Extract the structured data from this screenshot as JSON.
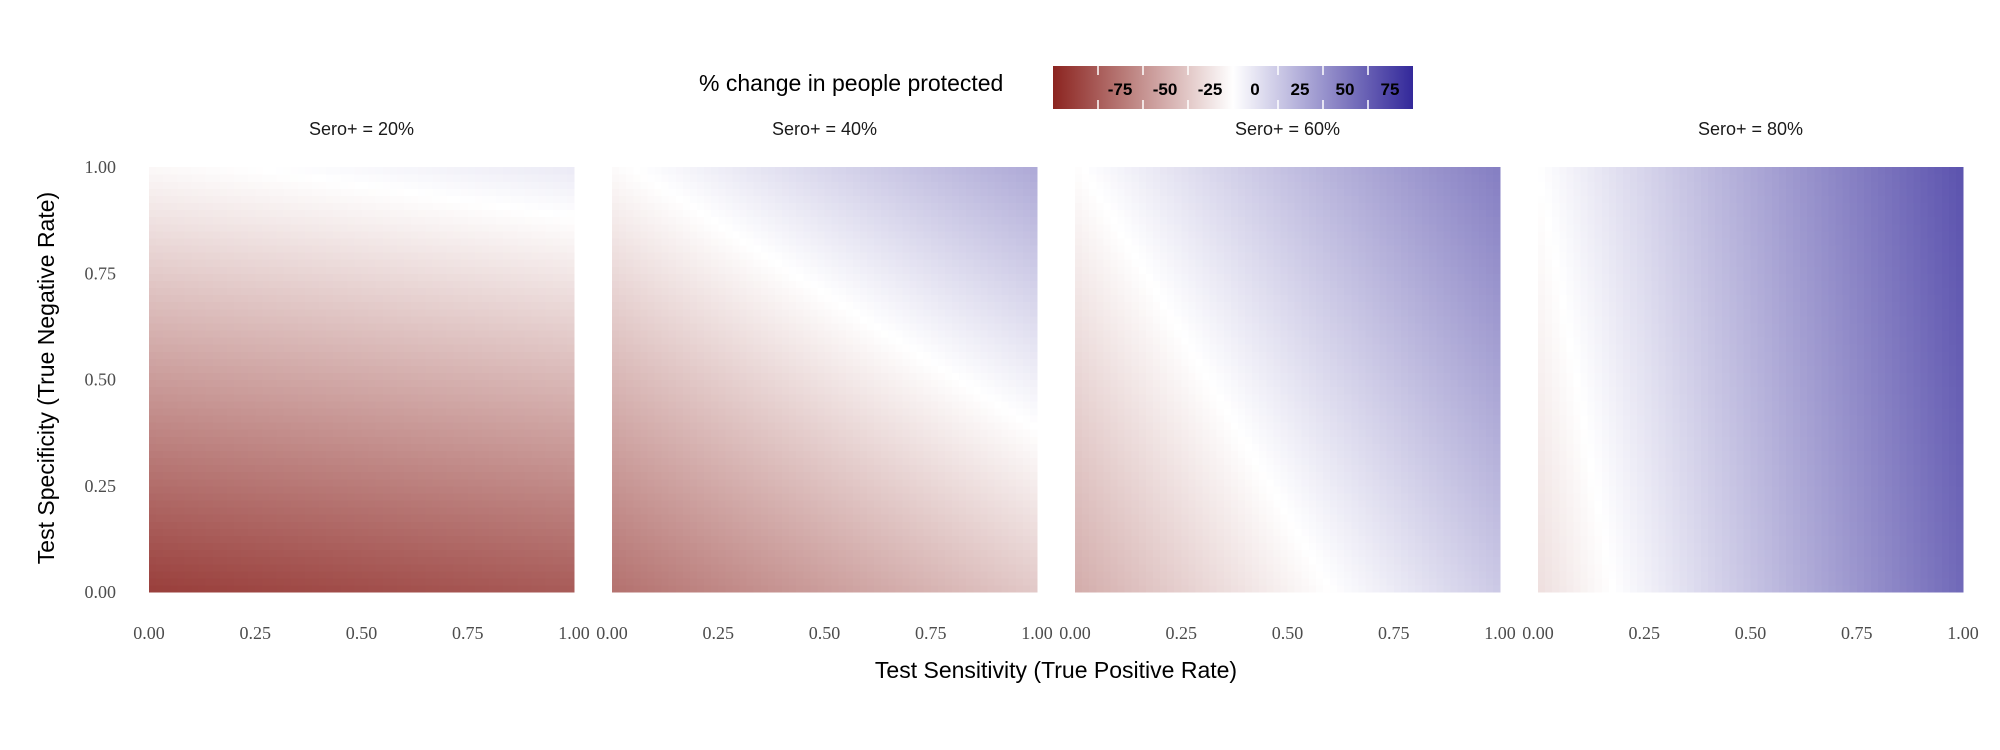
{
  "legend": {
    "title": "% change in people protected",
    "ticks": [
      -75,
      -50,
      -25,
      0,
      25,
      50,
      75
    ],
    "tick_labels": [
      "-75",
      "-50",
      "-25",
      "0",
      "25",
      "50",
      "75"
    ],
    "limits": [
      -100,
      100
    ],
    "colors": {
      "low": "#8b2420",
      "mid": "#ffffff",
      "high": "#33289a"
    }
  },
  "chart_data": {
    "type": "heatmap",
    "xlabel": "Test Sensitivity (True Positive Rate)",
    "ylabel": "Test Specificity (True Negative Rate)",
    "xlim": [
      0,
      1
    ],
    "ylim": [
      0,
      1
    ],
    "x_ticks": [
      0,
      0.25,
      0.5,
      0.75,
      1
    ],
    "y_ticks": [
      0,
      0.25,
      0.5,
      0.75,
      1
    ],
    "x_tick_labels": [
      "0.00",
      "0.25",
      "0.50",
      "0.75",
      "1.00"
    ],
    "y_tick_labels": [
      "0.00",
      "0.25",
      "0.50",
      "0.75",
      "1.00"
    ],
    "grid": false,
    "legend_position": "top",
    "panels": [
      {
        "label": "Sero+ = 20%",
        "seroprevalence": 0.2,
        "corner_values": {
          "sens0_spec0": -88,
          "sens1_spec0": -75,
          "sens0_spec1": -3,
          "sens1_spec1": 10
        }
      },
      {
        "label": "Sero+ = 40%",
        "seroprevalence": 0.4,
        "corner_values": {
          "sens0_spec0": -65,
          "sens1_spec0": -25,
          "sens0_spec1": -2,
          "sens1_spec1": 40
        }
      },
      {
        "label": "Sero+ = 60%",
        "seroprevalence": 0.6,
        "corner_values": {
          "sens0_spec0": -38,
          "sens1_spec0": 25,
          "sens0_spec1": -1,
          "sens1_spec1": 60
        }
      },
      {
        "label": "Sero+ = 80%",
        "seroprevalence": 0.8,
        "corner_values": {
          "sens0_spec0": -15,
          "sens1_spec0": 70,
          "sens0_spec1": 0,
          "sens1_spec1": 80
        }
      }
    ]
  }
}
